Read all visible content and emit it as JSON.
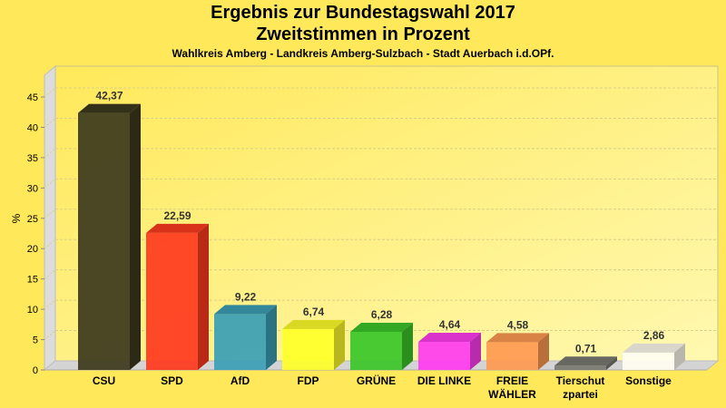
{
  "chart_data": {
    "type": "bar",
    "title": "Ergebnis zur Bundestagswahl 2017",
    "subtitle": "Zweitstimmen in Prozent",
    "subsubtitle": "Wahlkreis Amberg - Landkreis Amberg-Sulzbach - Stadt Auerbach i.d.OPf.",
    "xlabel": "",
    "ylabel": "%",
    "ylim": [
      0,
      45
    ],
    "yticks": [
      0,
      5,
      10,
      15,
      20,
      25,
      30,
      35,
      40,
      45
    ],
    "grid": true,
    "style": "3d",
    "categories": [
      [
        "CSU"
      ],
      [
        "SPD"
      ],
      [
        "AfD"
      ],
      [
        "FDP"
      ],
      [
        "GRÜNE"
      ],
      [
        "DIE LINKE"
      ],
      [
        "FREIE",
        "WÄHLER"
      ],
      [
        "Tierschut",
        "zpartei"
      ],
      [
        "Sonstige"
      ]
    ],
    "values": [
      42.37,
      22.59,
      9.22,
      6.74,
      6.28,
      4.64,
      4.58,
      0.71,
      2.86
    ],
    "value_labels": [
      "42,37",
      "22,59",
      "9,22",
      "6,74",
      "6,28",
      "4,64",
      "4,58",
      "0,71",
      "2,86"
    ],
    "colors": [
      "#3d3a1e",
      "#ff3b1f",
      "#3c9fb6",
      "#ffff2a",
      "#3cc62a",
      "#ff3cf0",
      "#ff9a52",
      "#7a7a72",
      "#fffdf0"
    ]
  }
}
